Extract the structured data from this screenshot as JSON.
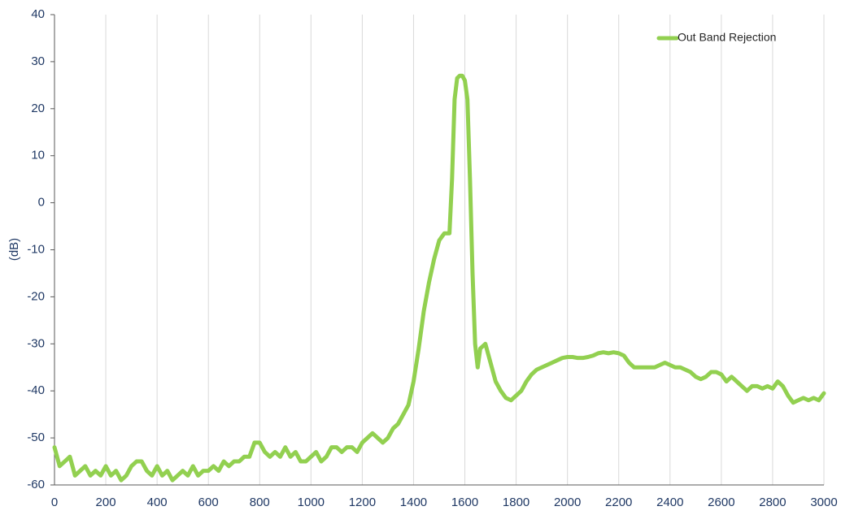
{
  "chart_data": {
    "type": "line",
    "y_label": "(dB)",
    "x": [
      0,
      20,
      40,
      60,
      80,
      100,
      120,
      140,
      160,
      180,
      200,
      220,
      240,
      260,
      280,
      300,
      320,
      340,
      360,
      380,
      400,
      420,
      440,
      460,
      480,
      500,
      520,
      540,
      560,
      580,
      600,
      620,
      640,
      660,
      680,
      700,
      720,
      740,
      760,
      780,
      800,
      820,
      840,
      860,
      880,
      900,
      920,
      940,
      960,
      980,
      1000,
      1020,
      1040,
      1060,
      1080,
      1100,
      1120,
      1140,
      1160,
      1180,
      1200,
      1220,
      1240,
      1260,
      1280,
      1300,
      1320,
      1340,
      1360,
      1380,
      1400,
      1420,
      1440,
      1460,
      1480,
      1500,
      1520,
      1540,
      1550,
      1560,
      1570,
      1580,
      1590,
      1600,
      1610,
      1620,
      1630,
      1640,
      1650,
      1660,
      1680,
      1700,
      1720,
      1740,
      1760,
      1780,
      1800,
      1820,
      1840,
      1860,
      1880,
      1900,
      1920,
      1940,
      1960,
      1980,
      2000,
      2020,
      2040,
      2060,
      2080,
      2100,
      2120,
      2140,
      2160,
      2180,
      2200,
      2220,
      2240,
      2260,
      2280,
      2300,
      2320,
      2340,
      2360,
      2380,
      2400,
      2420,
      2440,
      2460,
      2480,
      2500,
      2520,
      2540,
      2560,
      2580,
      2600,
      2620,
      2640,
      2660,
      2680,
      2700,
      2720,
      2740,
      2760,
      2780,
      2800,
      2820,
      2840,
      2860,
      2880,
      2900,
      2920,
      2940,
      2960,
      2980,
      3000
    ],
    "series": [
      {
        "name": "Out Band Rejection",
        "color": "#92d050",
        "values": [
          -52,
          -56,
          -55,
          -54,
          -58,
          -57,
          -56,
          -58,
          -57,
          -58,
          -56,
          -58,
          -57,
          -59,
          -58,
          -56,
          -55,
          -55,
          -57,
          -58,
          -56,
          -58,
          -57,
          -59,
          -58,
          -57,
          -58,
          -56,
          -58,
          -57,
          -57,
          -56,
          -57,
          -55,
          -56,
          -55,
          -55,
          -54,
          -54,
          -51,
          -51,
          -53,
          -54,
          -53,
          -54,
          -52,
          -54,
          -53,
          -55,
          -55,
          -54,
          -53,
          -55,
          -54,
          -52,
          -52,
          -53,
          -52,
          -52,
          -53,
          -51,
          -50,
          -49,
          -50,
          -51,
          -50,
          -48,
          -47,
          -45,
          -43,
          -38,
          -31,
          -23,
          -17,
          -12,
          -8,
          -6.5,
          -6.5,
          5,
          22,
          26.5,
          27,
          27,
          26,
          22,
          5,
          -15,
          -30,
          -35,
          -31,
          -30,
          -34,
          -38,
          -40,
          -41.5,
          -42,
          -41,
          -40,
          -38,
          -36.5,
          -35.5,
          -35,
          -34.5,
          -34,
          -33.5,
          -33,
          -32.8,
          -32.8,
          -33,
          -33,
          -32.8,
          -32.5,
          -32,
          -31.8,
          -32,
          -31.8,
          -32,
          -32.5,
          -34,
          -35,
          -35,
          -35,
          -35,
          -35,
          -34.5,
          -34,
          -34.5,
          -35,
          -35,
          -35.5,
          -36,
          -37,
          -37.5,
          -37,
          -36,
          -36,
          -36.5,
          -38,
          -37,
          -38,
          -39,
          -40,
          -39,
          -39,
          -39.5,
          -39,
          -39.5,
          -38,
          -39,
          -41,
          -42.5,
          -42,
          -41.5,
          -42,
          -41.5,
          -42,
          -40.5
        ]
      }
    ],
    "xlim": [
      0,
      3000
    ],
    "xticks": [
      0,
      200,
      400,
      600,
      800,
      1000,
      1200,
      1400,
      1600,
      1800,
      2000,
      2200,
      2400,
      2600,
      2800,
      3000
    ],
    "ylim": [
      -60,
      40
    ],
    "yticks": [
      -60,
      -50,
      -40,
      -30,
      -20,
      -10,
      0,
      10,
      20,
      30,
      40
    ],
    "grid": "x",
    "legend": "top-right"
  }
}
